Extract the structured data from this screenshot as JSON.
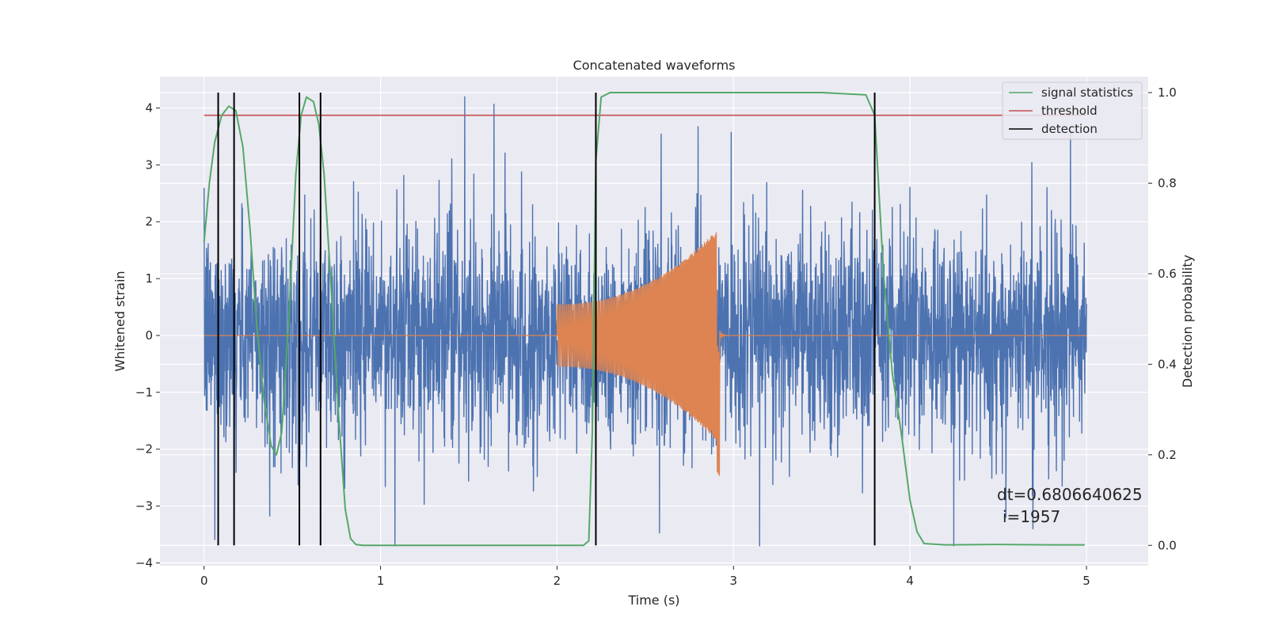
{
  "chart_data": {
    "type": "line",
    "title": "Concatenated waveforms",
    "xlabel": "Time (s)",
    "ylabel": "Whitened strain",
    "y2label": "Detection probability",
    "xlim": [
      -0.25,
      5.35
    ],
    "ylim": [
      -4.05,
      4.55
    ],
    "y2lim": [
      -0.045,
      1.035
    ],
    "xticks": [
      0,
      1,
      2,
      3,
      4,
      5
    ],
    "yticks": [
      -4,
      -3,
      -2,
      -1,
      0,
      1,
      2,
      3,
      4
    ],
    "y2ticks": [
      0.0,
      0.2,
      0.4,
      0.6,
      0.8,
      1.0
    ],
    "grid": true,
    "legend_position": "top-right",
    "colors": {
      "noise": "#4c72b0",
      "injection": "#dd8452",
      "signal_statistics": "#55a868",
      "threshold": "#c44e52",
      "detection": "#000000"
    },
    "series": [
      {
        "name": "signal statistics",
        "axis": "right",
        "x": [
          0.0,
          0.03,
          0.06,
          0.1,
          0.14,
          0.18,
          0.22,
          0.26,
          0.3,
          0.34,
          0.38,
          0.41,
          0.44,
          0.48,
          0.52,
          0.55,
          0.58,
          0.62,
          0.65,
          0.68,
          0.72,
          0.76,
          0.8,
          0.83,
          0.86,
          0.9,
          1.2,
          1.6,
          2.0,
          2.15,
          2.18,
          2.2,
          2.22,
          2.25,
          2.3,
          2.5,
          3.0,
          3.5,
          3.75,
          3.8,
          3.85,
          3.9,
          3.95,
          4.0,
          4.04,
          4.08,
          4.2,
          4.5,
          4.8,
          4.99
        ],
        "values": [
          0.67,
          0.8,
          0.89,
          0.95,
          0.97,
          0.96,
          0.88,
          0.7,
          0.48,
          0.32,
          0.22,
          0.2,
          0.25,
          0.5,
          0.82,
          0.95,
          0.99,
          0.98,
          0.93,
          0.82,
          0.57,
          0.3,
          0.08,
          0.015,
          0.002,
          0.0,
          0.0,
          0.0,
          0.0,
          0.0,
          0.01,
          0.25,
          0.85,
          0.99,
          1.0,
          1.0,
          1.0,
          1.0,
          0.995,
          0.95,
          0.6,
          0.38,
          0.25,
          0.1,
          0.03,
          0.004,
          0.001,
          0.002,
          0.001,
          0.001
        ]
      },
      {
        "name": "threshold",
        "axis": "right",
        "x": [
          0,
          5
        ],
        "values": [
          0.95,
          0.95
        ]
      },
      {
        "name": "detection",
        "axis": "right",
        "x": [
          0.08,
          0.17,
          0.54,
          0.66,
          2.22,
          3.8
        ],
        "range": [
          0.0,
          1.0
        ]
      }
    ],
    "noise": {
      "axis": "left",
      "x_range": [
        0,
        5
      ],
      "typical_amplitude": 1.3,
      "peak_max": 4.2,
      "peak_min": -3.7
    },
    "injection": {
      "axis": "left",
      "x_range": [
        2.0,
        2.92
      ],
      "amplitude_start": 0.55,
      "amplitude_end": 1.9,
      "min_value": -2.5
    },
    "annotation": {
      "line1": "dt=0.6806640625",
      "line2": "i=1957"
    }
  }
}
